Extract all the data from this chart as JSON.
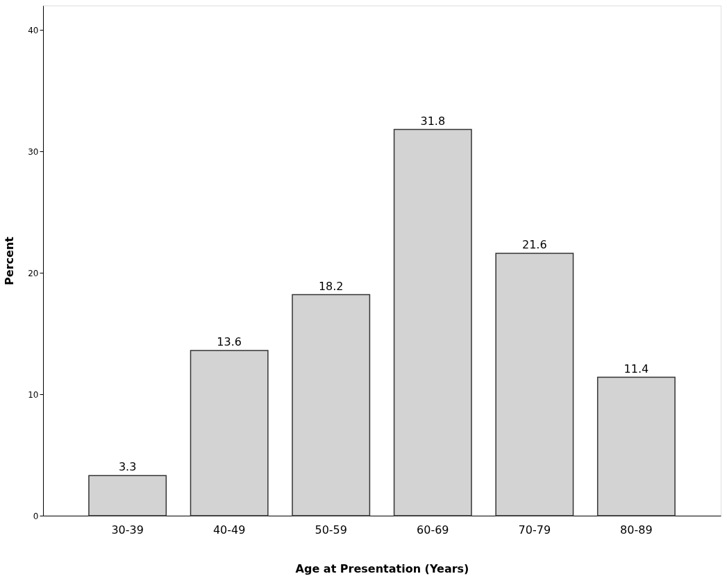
{
  "chart_data": {
    "type": "bar",
    "xlabel": "Age at Presentation (Years)",
    "ylabel": "Percent",
    "categories": [
      "30-39",
      "40-49",
      "50-59",
      "60-69",
      "70-79",
      "80-89"
    ],
    "values": [
      3.3,
      13.6,
      18.2,
      31.8,
      21.6,
      11.4
    ],
    "color": "#d3d3d3",
    "ylim": [
      0,
      42
    ],
    "yticks": [
      0,
      10,
      20,
      30,
      40
    ],
    "grid": false,
    "data_labels": true
  }
}
